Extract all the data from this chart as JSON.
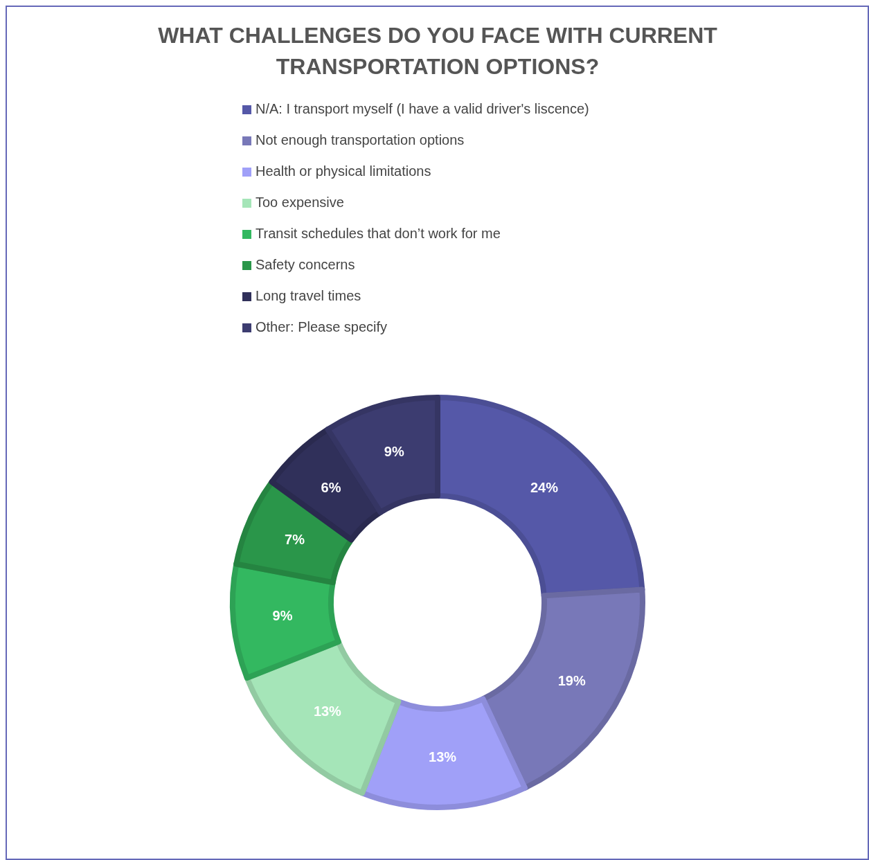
{
  "chart_data": {
    "type": "donut",
    "title": "WHAT CHALLENGES DO YOU FACE WITH CURRENT TRANSPORTATION OPTIONS?",
    "categories": [
      "N/A: I transport myself (I have a valid driver's liscence)",
      "Not enough transportation options",
      "Health or physical limitations",
      "Too expensive",
      "Transit schedules that don’t work for me",
      "Safety concerns",
      "Long travel times",
      "Other: Please specify"
    ],
    "values": [
      24,
      19,
      13,
      13,
      9,
      7,
      6,
      9
    ],
    "value_labels": [
      "24%",
      "19%",
      "13%",
      "13%",
      "9%",
      "7%",
      "6%",
      "9%"
    ],
    "colors": [
      "#5558a8",
      "#7878b8",
      "#a0a0f8",
      "#a5e5b8",
      "#33b860",
      "#2a964a",
      "#30305a",
      "#3c3c70"
    ],
    "legend": "top"
  }
}
